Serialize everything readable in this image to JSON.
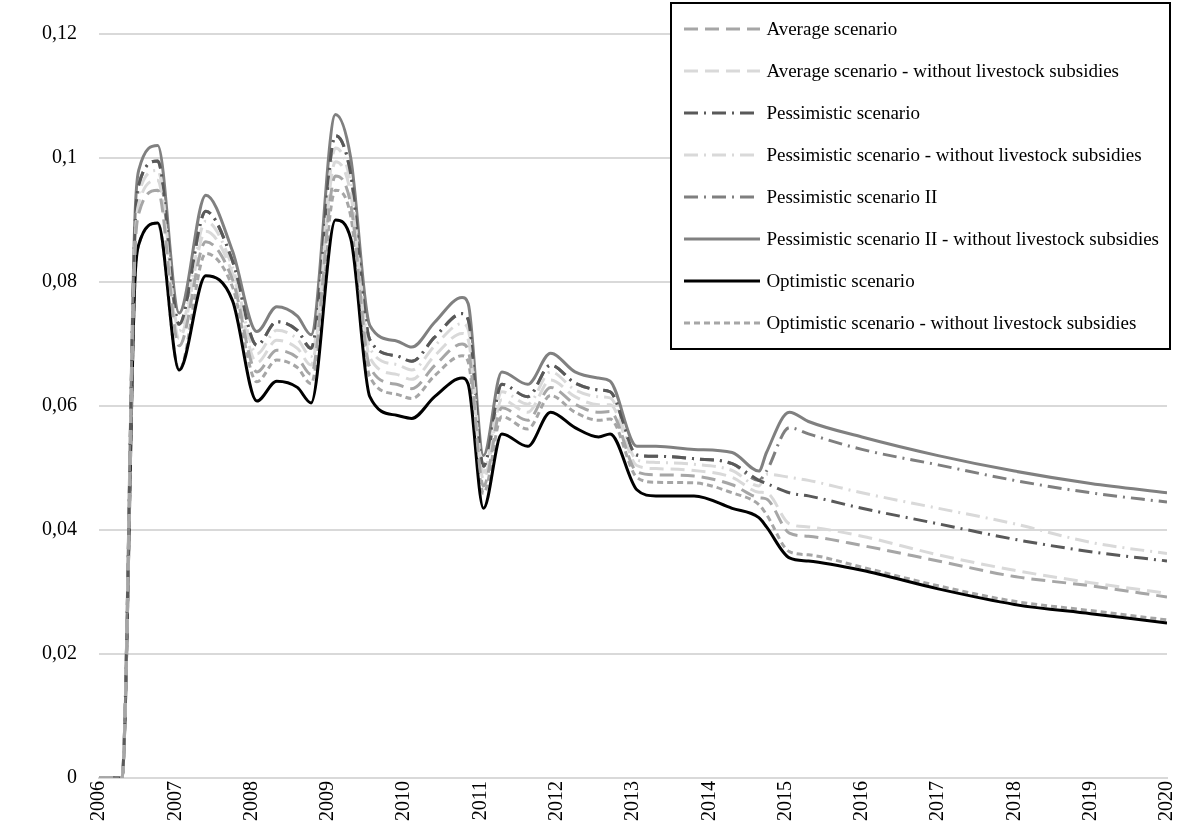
{
  "chart_data": {
    "type": "line",
    "x": [
      2006,
      2006.3,
      2006.47,
      2006.52,
      2006.77,
      2007.05,
      2007.4,
      2007.75,
      2008.07,
      2008.33,
      2008.6,
      2008.78,
      2009.1,
      2009.3,
      2009.55,
      2009.9,
      2010.1,
      2010.4,
      2010.76,
      2010.84,
      2011.04,
      2011.28,
      2011.62,
      2011.92,
      2012.24,
      2012.55,
      2012.7,
      2013.05,
      2013.3,
      2013.8,
      2014.3,
      2014.65,
      2014.75,
      2015.05,
      2015.3,
      2016,
      2017,
      2018,
      2019,
      2020
    ],
    "xlim": [
      2006,
      2020
    ],
    "xticks": [
      2006,
      2007,
      2008,
      2009,
      2010,
      2011,
      2012,
      2013,
      2014,
      2015,
      2016,
      2017,
      2018,
      2019,
      2020
    ],
    "ylim": [
      0,
      0.12
    ],
    "yticks": [
      {
        "value": 0,
        "label": "0"
      },
      {
        "value": 0.02,
        "label": "0,02"
      },
      {
        "value": 0.04,
        "label": "0,04"
      },
      {
        "value": 0.06,
        "label": "0,06"
      },
      {
        "value": 0.08,
        "label": "0,08"
      },
      {
        "value": 0.1,
        "label": "0,1"
      },
      {
        "value": 0.12,
        "label": "0,12"
      }
    ],
    "grid": "y",
    "legend": "top right",
    "marker": "none",
    "series": [
      {
        "name": "Average scenario",
        "color": "#a6a6a6",
        "line_style": "dashed",
        "values": [
          0,
          0,
          0.0842,
          0.091,
          0.0948,
          0.0697,
          0.0865,
          0.0804,
          0.0655,
          0.069,
          0.0678,
          0.0651,
          0.0971,
          0.0925,
          0.0663,
          0.0635,
          0.0628,
          0.0665,
          0.07,
          0.069,
          0.0471,
          0.0597,
          0.0577,
          0.063,
          0.0603,
          0.059,
          0.0591,
          0.0494,
          0.0489,
          0.0487,
          0.0473,
          0.0452,
          0.045,
          0.0395,
          0.039,
          0.0375,
          0.035,
          0.0325,
          0.031,
          0.0292
        ]
      },
      {
        "name": "Average scenario - without livestock subsidies",
        "color": "#d9d9d9",
        "line_style": "dashed",
        "values": [
          0,
          0,
          0.0855,
          0.0926,
          0.0964,
          0.0709,
          0.0882,
          0.0814,
          0.067,
          0.0706,
          0.0693,
          0.0666,
          0.0994,
          0.0942,
          0.0678,
          0.0651,
          0.0643,
          0.0681,
          0.0717,
          0.0707,
          0.0482,
          0.061,
          0.059,
          0.0642,
          0.0615,
          0.0602,
          0.0602,
          0.0504,
          0.0499,
          0.0496,
          0.0485,
          0.0461,
          0.046,
          0.041,
          0.0405,
          0.039,
          0.036,
          0.0335,
          0.0315,
          0.0298
        ]
      },
      {
        "name": "Pessimistic scenario",
        "color": "#595959",
        "line_style": "dashdot",
        "values": [
          0,
          0,
          0.088,
          0.0956,
          0.0995,
          0.0732,
          0.0914,
          0.0834,
          0.0698,
          0.0736,
          0.0722,
          0.0693,
          0.1036,
          0.0974,
          0.0707,
          0.0681,
          0.0672,
          0.0711,
          0.0749,
          0.0739,
          0.0503,
          0.0635,
          0.0615,
          0.0666,
          0.0637,
          0.0626,
          0.0623,
          0.0521,
          0.0519,
          0.0515,
          0.0507,
          0.048,
          0.0475,
          0.046,
          0.0455,
          0.0435,
          0.041,
          0.0385,
          0.0365,
          0.035
        ]
      },
      {
        "name": "Pessimistic scenario - without livestock subsidies",
        "color": "#d9d9d9",
        "line_style": "dashdot",
        "values": [
          0,
          0,
          0.0868,
          0.0942,
          0.098,
          0.0721,
          0.0898,
          0.0824,
          0.0684,
          0.0722,
          0.0708,
          0.068,
          0.1016,
          0.0958,
          0.0693,
          0.0667,
          0.0658,
          0.0697,
          0.0733,
          0.0723,
          0.0493,
          0.0623,
          0.0603,
          0.0655,
          0.0626,
          0.0615,
          0.0613,
          0.0513,
          0.0509,
          0.0506,
          0.0496,
          0.0471,
          0.049,
          0.0485,
          0.048,
          0.046,
          0.0435,
          0.041,
          0.038,
          0.0362
        ]
      },
      {
        "name": "Pessimistic scenario II",
        "color": "#7f7f7f",
        "line_style": "dashdot",
        "values": [
          0,
          0,
          0.088,
          0.0956,
          0.0995,
          0.0732,
          0.0914,
          0.0834,
          0.0698,
          0.0736,
          0.0722,
          0.0693,
          0.1036,
          0.0974,
          0.0707,
          0.0681,
          0.0672,
          0.0711,
          0.0749,
          0.0739,
          0.0503,
          0.0635,
          0.0615,
          0.0666,
          0.0637,
          0.0626,
          0.0623,
          0.0521,
          0.0519,
          0.0515,
          0.0507,
          0.048,
          0.0495,
          0.0565,
          0.0555,
          0.053,
          0.0505,
          0.048,
          0.046,
          0.0445
        ]
      },
      {
        "name": "Pessimistic scenario II - without livestock subsidies",
        "color": "#808080",
        "line_style": "solid",
        "values": [
          0,
          0,
          0.09,
          0.098,
          0.102,
          0.075,
          0.094,
          0.085,
          0.072,
          0.076,
          0.0745,
          0.0715,
          0.107,
          0.1,
          0.073,
          0.0705,
          0.0695,
          0.0735,
          0.0775,
          0.0765,
          0.052,
          0.0655,
          0.0635,
          0.0685,
          0.0655,
          0.0645,
          0.064,
          0.0535,
          0.0535,
          0.053,
          0.0525,
          0.0495,
          0.0525,
          0.059,
          0.0575,
          0.055,
          0.052,
          0.0495,
          0.0475,
          0.046
        ]
      },
      {
        "name": "Optimistic scenario",
        "color": "#000000",
        "line_style": "solid",
        "values": [
          0,
          0,
          0.08,
          0.086,
          0.0895,
          0.0658,
          0.081,
          0.077,
          0.0608,
          0.064,
          0.063,
          0.0605,
          0.09,
          0.087,
          0.0615,
          0.0585,
          0.058,
          0.0615,
          0.0645,
          0.0635,
          0.0435,
          0.0555,
          0.0535,
          0.059,
          0.0565,
          0.055,
          0.0555,
          0.0465,
          0.0455,
          0.0455,
          0.0435,
          0.042,
          0.0405,
          0.0355,
          0.035,
          0.0335,
          0.0305,
          0.028,
          0.0265,
          0.025
        ]
      },
      {
        "name": "Optimistic scenario - without livestock subsidies",
        "color": "#a6a6a6",
        "line_style": "dotted",
        "values": [
          0,
          0,
          0.08,
          0.086,
          0.0895,
          0.0658,
          0.0846,
          0.0792,
          0.0639,
          0.0674,
          0.0662,
          0.0636,
          0.0948,
          0.0906,
          0.0647,
          0.0619,
          0.0612,
          0.0649,
          0.0681,
          0.0671,
          0.0459,
          0.0583,
          0.0563,
          0.0617,
          0.059,
          0.0577,
          0.0579,
          0.0485,
          0.0477,
          0.0476,
          0.046,
          0.0441,
          0.0425,
          0.0365,
          0.036,
          0.034,
          0.031,
          0.0285,
          0.027,
          0.0255
        ]
      }
    ]
  }
}
